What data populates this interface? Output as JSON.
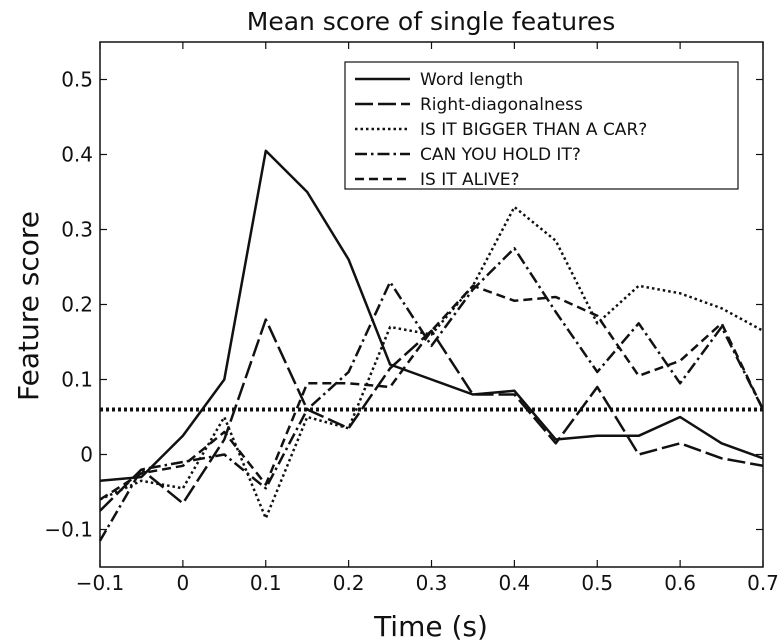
{
  "chart_data": {
    "type": "line",
    "title": "Mean score of single features",
    "xlabel": "Time (s)",
    "ylabel": "Feature score",
    "xlim": [
      -0.1,
      0.7
    ],
    "ylim": [
      -0.15,
      0.55
    ],
    "xticks": [
      -0.1,
      0,
      0.1,
      0.2,
      0.3,
      0.4,
      0.5,
      0.6,
      0.7
    ],
    "xtick_labels": [
      "−0.1",
      "0",
      "0.1",
      "0.2",
      "0.3",
      "0.4",
      "0.5",
      "0.6",
      "0.7"
    ],
    "yticks": [
      -0.1,
      0,
      0.1,
      0.2,
      0.3,
      0.4,
      0.5
    ],
    "ytick_labels": [
      "−0.1",
      "0",
      "0.1",
      "0.2",
      "0.3",
      "0.4",
      "0.5"
    ],
    "grid": false,
    "legend_position": "top-right",
    "x": [
      -0.1,
      -0.05,
      0,
      0.05,
      0.1,
      0.15,
      0.2,
      0.25,
      0.3,
      0.35,
      0.4,
      0.45,
      0.5,
      0.55,
      0.6,
      0.65,
      0.7
    ],
    "series": [
      {
        "name": "Word length",
        "style": "solid",
        "values": [
          -0.035,
          -0.03,
          0.025,
          0.1,
          0.405,
          0.35,
          0.26,
          0.12,
          0.1,
          0.08,
          0.085,
          0.02,
          0.025,
          0.025,
          0.05,
          0.015,
          -0.005
        ]
      },
      {
        "name": "Right-diagonalness",
        "style": "longdash",
        "values": [
          -0.075,
          -0.02,
          -0.065,
          0.02,
          0.18,
          0.06,
          0.035,
          0.115,
          0.165,
          0.08,
          0.08,
          0.015,
          0.09,
          0.0,
          0.015,
          -0.005,
          -0.015
        ]
      },
      {
        "name": "IS IT BIGGER THAN A CAR?",
        "style": "dotted",
        "values": [
          -0.06,
          -0.035,
          -0.045,
          0.05,
          -0.085,
          0.05,
          0.035,
          0.17,
          0.16,
          0.225,
          0.33,
          0.285,
          0.175,
          0.225,
          0.215,
          0.195,
          0.165
        ]
      },
      {
        "name": "CAN YOU HOLD IT?",
        "style": "dashdot",
        "values": [
          -0.115,
          -0.02,
          -0.01,
          0.0,
          -0.045,
          0.06,
          0.11,
          0.23,
          0.145,
          0.22,
          0.275,
          0.19,
          0.11,
          0.175,
          0.095,
          0.17,
          0.06
        ]
      },
      {
        "name": "IS IT ALIVE?",
        "style": "dash",
        "values": [
          -0.06,
          -0.025,
          -0.015,
          0.03,
          -0.04,
          0.095,
          0.095,
          0.09,
          0.165,
          0.225,
          0.205,
          0.21,
          0.185,
          0.105,
          0.125,
          0.175,
          0.06
        ]
      }
    ],
    "reference_line": {
      "style": "dotted",
      "y": 0.06
    }
  }
}
